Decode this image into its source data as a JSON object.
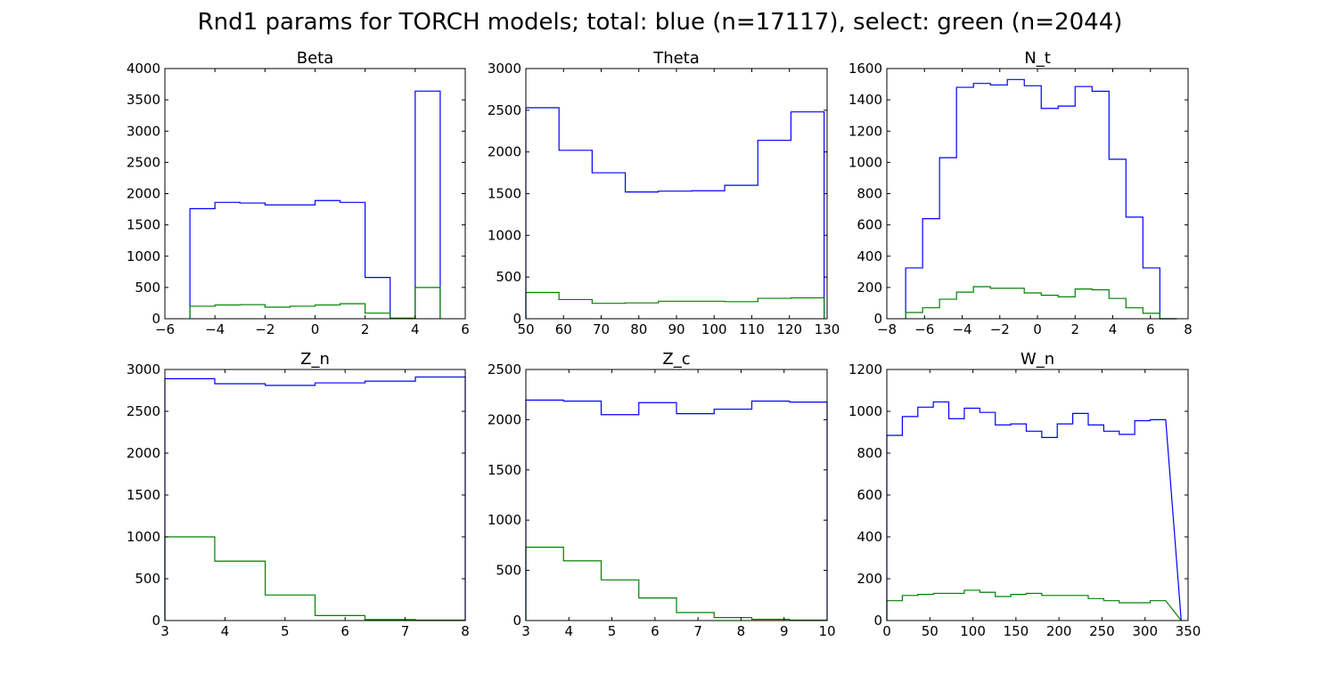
{
  "title": "Rnd1 params for TORCH models; total: blue (n=17117), select: green (n=2044)",
  "colors": {
    "total": "#0000ff",
    "select": "#008000",
    "axes": "#000000"
  },
  "chart_data": [
    {
      "type": "histogram",
      "title": "Beta",
      "xlim": [
        -6,
        6
      ],
      "ylim": [
        0,
        4000
      ],
      "xticks": [
        -6,
        -4,
        -2,
        0,
        2,
        4,
        6
      ],
      "xtick_labels": [
        "−6",
        "−4",
        "−2",
        "0",
        "2",
        "4",
        "6"
      ],
      "yticks": [
        0,
        500,
        1000,
        1500,
        2000,
        2500,
        3000,
        3500,
        4000
      ],
      "bin_edges": [
        -5,
        -4,
        -3,
        -2,
        -1,
        0,
        1,
        2,
        3,
        4,
        5
      ],
      "series": [
        {
          "key": "total",
          "values": [
            1760,
            1860,
            1850,
            1820,
            1820,
            1890,
            1860,
            660,
            10,
            3640
          ]
        },
        {
          "key": "select",
          "values": [
            200,
            220,
            225,
            185,
            200,
            220,
            240,
            90,
            5,
            500
          ]
        }
      ]
    },
    {
      "type": "histogram",
      "title": "Theta",
      "xlim": [
        50,
        130
      ],
      "ylim": [
        0,
        3000
      ],
      "xticks": [
        50,
        60,
        70,
        80,
        90,
        100,
        110,
        120,
        130
      ],
      "yticks": [
        0,
        500,
        1000,
        1500,
        2000,
        2500,
        3000
      ],
      "bin_edges": [
        50,
        58.8,
        67.6,
        76.4,
        85.2,
        94,
        102.8,
        111.6,
        120.4,
        129.2
      ],
      "series": [
        {
          "key": "total",
          "values": [
            2530,
            2020,
            1750,
            1520,
            1530,
            1535,
            1600,
            2140,
            2480
          ]
        },
        {
          "key": "select",
          "values": [
            315,
            230,
            185,
            190,
            210,
            210,
            205,
            245,
            250
          ]
        }
      ]
    },
    {
      "type": "histogram",
      "title": "N_t",
      "xlim": [
        -8,
        8
      ],
      "ylim": [
        0,
        1600
      ],
      "xticks": [
        -8,
        -6,
        -4,
        -2,
        0,
        2,
        4,
        6,
        8
      ],
      "xtick_labels": [
        "−8",
        "−6",
        "−4",
        "−2",
        "0",
        "2",
        "4",
        "6",
        "8"
      ],
      "yticks": [
        0,
        200,
        400,
        600,
        800,
        1000,
        1200,
        1400,
        1600
      ],
      "bin_edges": [
        -7,
        -6.1,
        -5.2,
        -4.3,
        -3.4,
        -2.5,
        -1.6,
        -0.7,
        0.2,
        1.1,
        2,
        2.9,
        3.8,
        4.7,
        5.6,
        6.5,
        7.4
      ],
      "series": [
        {
          "key": "total",
          "values": [
            325,
            640,
            1030,
            1480,
            1505,
            1495,
            1530,
            1490,
            1345,
            1360,
            1485,
            1455,
            1020,
            650,
            325,
            0
          ]
        },
        {
          "key": "select",
          "values": [
            40,
            70,
            125,
            170,
            205,
            195,
            195,
            165,
            150,
            140,
            190,
            185,
            130,
            70,
            35,
            0
          ]
        }
      ]
    },
    {
      "type": "histogram",
      "title": "Z_n",
      "xlim": [
        3,
        8
      ],
      "ylim": [
        0,
        3000
      ],
      "xticks": [
        3,
        4,
        5,
        6,
        7,
        8
      ],
      "yticks": [
        0,
        500,
        1000,
        1500,
        2000,
        2500,
        3000
      ],
      "bin_edges": [
        3,
        3.83,
        4.67,
        5.5,
        6.33,
        7.17,
        8
      ],
      "series": [
        {
          "key": "total",
          "values": [
            2890,
            2830,
            2810,
            2840,
            2860,
            2910
          ]
        },
        {
          "key": "select",
          "values": [
            1000,
            710,
            305,
            60,
            12,
            5
          ]
        }
      ]
    },
    {
      "type": "histogram",
      "title": "Z_c",
      "xlim": [
        3,
        10
      ],
      "ylim": [
        0,
        2500
      ],
      "xticks": [
        3,
        4,
        5,
        6,
        7,
        8,
        9,
        10
      ],
      "yticks": [
        0,
        500,
        1000,
        1500,
        2000,
        2500
      ],
      "bin_edges": [
        3,
        3.875,
        4.75,
        5.625,
        6.5,
        7.375,
        8.25,
        9.125,
        10
      ],
      "series": [
        {
          "key": "total",
          "values": [
            2195,
            2185,
            2050,
            2170,
            2060,
            2105,
            2185,
            2175
          ]
        },
        {
          "key": "select",
          "values": [
            730,
            595,
            405,
            225,
            80,
            30,
            12,
            5
          ]
        }
      ]
    },
    {
      "type": "histogram",
      "title": "W_n",
      "xlim": [
        0,
        350
      ],
      "ylim": [
        0,
        1200
      ],
      "xticks": [
        0,
        50,
        100,
        150,
        200,
        250,
        300,
        350
      ],
      "yticks": [
        0,
        200,
        400,
        600,
        800,
        1000,
        1200
      ],
      "bin_edges": [
        0,
        18,
        36,
        54,
        72,
        90,
        108,
        126,
        144,
        162,
        180,
        198,
        216,
        234,
        252,
        270,
        288,
        306,
        324,
        342
      ],
      "series": [
        {
          "key": "total",
          "values": [
            885,
            975,
            1020,
            1045,
            965,
            1015,
            995,
            935,
            940,
            905,
            875,
            940,
            990,
            935,
            905,
            890,
            955,
            960
          ]
        },
        {
          "key": "select",
          "values": [
            95,
            120,
            125,
            130,
            130,
            145,
            135,
            115,
            125,
            130,
            120,
            120,
            120,
            105,
            95,
            85,
            85,
            95
          ]
        }
      ]
    }
  ]
}
